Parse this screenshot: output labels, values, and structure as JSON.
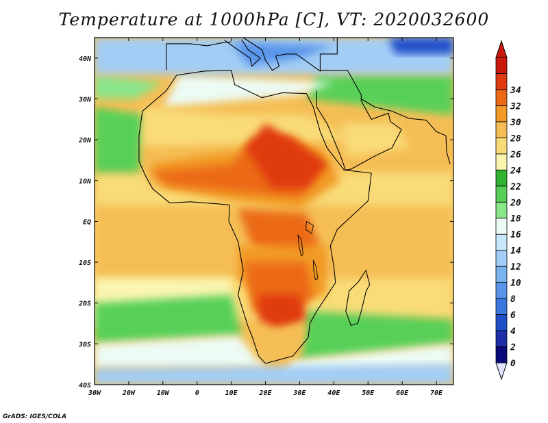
{
  "title": "Temperature at 1000hPa [C], VT: 2020032600",
  "footer": "GrADS: IGES/COLA",
  "map": {
    "type": "filled-contour",
    "variable": "Temperature at 1000hPa",
    "units": "C",
    "lon_range": [
      -30,
      75
    ],
    "lat_range": [
      -40,
      45
    ],
    "lon_ticks": [
      "30W",
      "20W",
      "10W",
      "0",
      "10E",
      "20E",
      "30E",
      "40E",
      "50E",
      "60E",
      "70E"
    ],
    "lat_ticks": [
      "40S",
      "30S",
      "20S",
      "10S",
      "EQ",
      "10N",
      "20N",
      "30N",
      "40N"
    ]
  },
  "colorbar": {
    "levels": [
      "0",
      "2",
      "4",
      "6",
      "8",
      "10",
      "12",
      "14",
      "16",
      "18",
      "20",
      "22",
      "24",
      "26",
      "28",
      "30",
      "32",
      "34"
    ],
    "colors": [
      "#0a0a7a",
      "#1c2fa8",
      "#2050c8",
      "#3a75e0",
      "#5a95ea",
      "#7ab2f0",
      "#a2cdf6",
      "#c8e6fa",
      "#ecfbf4",
      "#8ae48a",
      "#58d058",
      "#32b032",
      "#fbf5b0",
      "#f9dc78",
      "#f5be55",
      "#f29a28",
      "#ec6a16",
      "#e03a10",
      "#c81a0c"
    ],
    "under_color": "#e0e0ff",
    "over_color": "#c81a0c"
  }
}
